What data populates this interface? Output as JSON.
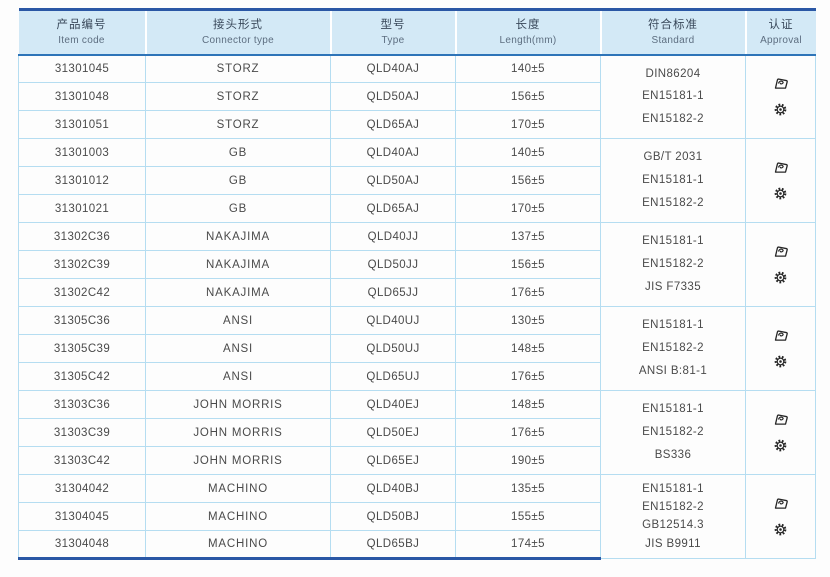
{
  "colors": {
    "dark_border": "#2a57a5",
    "medium_border": "#2e74b8",
    "line": "#b5ddf1",
    "header_bg": "#d3e9f6",
    "text": "#4a4a4a"
  },
  "table": {
    "columns": [
      {
        "zh": "产品编号",
        "en": "Item code"
      },
      {
        "zh": "接头形式",
        "en": "Connector type"
      },
      {
        "zh": "型号",
        "en": "Type"
      },
      {
        "zh": "长度",
        "en": "Length(mm)"
      },
      {
        "zh": "符合标准",
        "en": "Standard"
      },
      {
        "zh": "认证",
        "en": "Approval"
      }
    ],
    "groups": [
      {
        "rows": [
          {
            "item_code": "31301045",
            "connector": "STORZ",
            "type": "QLD40AJ",
            "length": "140±5"
          },
          {
            "item_code": "31301048",
            "connector": "STORZ",
            "type": "QLD50AJ",
            "length": "156±5"
          },
          {
            "item_code": "31301051",
            "connector": "STORZ",
            "type": "QLD65AJ",
            "length": "170±5"
          }
        ],
        "standards": [
          "DIN86204",
          "EN15181-1",
          "EN15182-2"
        ],
        "approval_icons": [
          "certificate-stamp-icon",
          "seal-gear-icon"
        ]
      },
      {
        "rows": [
          {
            "item_code": "31301003",
            "connector": "GB",
            "type": "QLD40AJ",
            "length": "140±5"
          },
          {
            "item_code": "31301012",
            "connector": "GB",
            "type": "QLD50AJ",
            "length": "156±5"
          },
          {
            "item_code": "31301021",
            "connector": "GB",
            "type": "QLD65AJ",
            "length": "170±5"
          }
        ],
        "standards": [
          "GB/T 2031",
          "EN15181-1",
          "EN15182-2"
        ],
        "approval_icons": [
          "certificate-stamp-icon",
          "seal-gear-icon"
        ]
      },
      {
        "rows": [
          {
            "item_code": "31302C36",
            "connector": "NAKAJIMA",
            "type": "QLD40JJ",
            "length": "137±5"
          },
          {
            "item_code": "31302C39",
            "connector": "NAKAJIMA",
            "type": "QLD50JJ",
            "length": "156±5"
          },
          {
            "item_code": "31302C42",
            "connector": "NAKAJIMA",
            "type": "QLD65JJ",
            "length": "176±5"
          }
        ],
        "standards": [
          "EN15181-1",
          "EN15182-2",
          "JIS F7335"
        ],
        "approval_icons": [
          "certificate-stamp-icon",
          "seal-gear-icon"
        ]
      },
      {
        "rows": [
          {
            "item_code": "31305C36",
            "connector": "ANSI",
            "type": "QLD40UJ",
            "length": "130±5"
          },
          {
            "item_code": "31305C39",
            "connector": "ANSI",
            "type": "QLD50UJ",
            "length": "148±5"
          },
          {
            "item_code": "31305C42",
            "connector": "ANSI",
            "type": "QLD65UJ",
            "length": "176±5"
          }
        ],
        "standards": [
          "EN15181-1",
          "EN15182-2",
          "ANSI B:81-1"
        ],
        "approval_icons": [
          "certificate-stamp-icon",
          "seal-gear-icon"
        ]
      },
      {
        "rows": [
          {
            "item_code": "31303C36",
            "connector": "JOHN MORRIS",
            "type": "QLD40EJ",
            "length": "148±5"
          },
          {
            "item_code": "31303C39",
            "connector": "JOHN MORRIS",
            "type": "QLD50EJ",
            "length": "176±5"
          },
          {
            "item_code": "31303C42",
            "connector": "JOHN MORRIS",
            "type": "QLD65EJ",
            "length": "190±5"
          }
        ],
        "standards": [
          "EN15181-1",
          "EN15182-2",
          "BS336"
        ],
        "approval_icons": [
          "certificate-stamp-icon",
          "seal-gear-icon"
        ]
      },
      {
        "rows": [
          {
            "item_code": "31304042",
            "connector": "MACHINO",
            "type": "QLD40BJ",
            "length": "135±5"
          },
          {
            "item_code": "31304045",
            "connector": "MACHINO",
            "type": "QLD50BJ",
            "length": "155±5"
          },
          {
            "item_code": "31304048",
            "connector": "MACHINO",
            "type": "QLD65BJ",
            "length": "174±5"
          }
        ],
        "standards": [
          "EN15181-1",
          "EN15182-2",
          "GB12514.3",
          "JIS B9911"
        ],
        "approval_icons": [
          "certificate-stamp-icon",
          "seal-gear-icon"
        ]
      }
    ]
  }
}
